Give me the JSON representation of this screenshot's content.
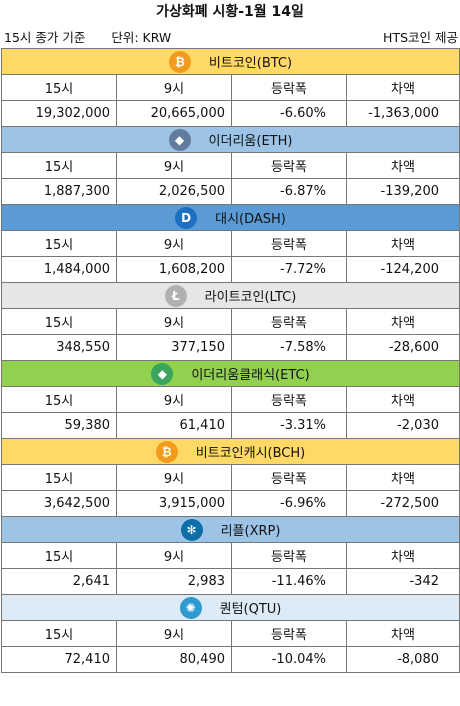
{
  "title": "가상화폐 시황-1월 14일",
  "subtitle": {
    "basis": "15시 종가 기준",
    "unit": "단위: KRW",
    "provider": "HTS코인 제공"
  },
  "headers": [
    "15시",
    "9시",
    "등락폭",
    "차액"
  ],
  "coins": [
    {
      "name": "비트코인(BTC)",
      "color": "#ffd966",
      "icon": "bitcoin-icon",
      "icon_color": "#f39b1c",
      "icon_glyph": "₿",
      "values": [
        "19,302,000",
        "20,665,000",
        "-6.60%",
        "-1,363,000"
      ]
    },
    {
      "name": "이더리움(ETH)",
      "color": "#9dc3e6",
      "icon": "ethereum-icon",
      "icon_color": "#607d9e",
      "icon_glyph": "◆",
      "values": [
        "1,887,300",
        "2,026,500",
        "-6.87%",
        "-139,200"
      ]
    },
    {
      "name": "대시(DASH)",
      "color": "#5b9bd5",
      "icon": "dash-icon",
      "icon_color": "#1d6fc1",
      "icon_glyph": "D",
      "values": [
        "1,484,000",
        "1,608,200",
        "-7.72%",
        "-124,200"
      ]
    },
    {
      "name": "라이트코인(LTC)",
      "color": "#e7e6e6",
      "icon": "litecoin-icon",
      "icon_color": "#b0b0b0",
      "icon_glyph": "Ł",
      "values": [
        "348,550",
        "377,150",
        "-7.58%",
        "-28,600"
      ]
    },
    {
      "name": "이더리움클래식(ETC)",
      "color": "#92d050",
      "icon": "ethereum-classic-icon",
      "icon_color": "#3aa55d",
      "icon_glyph": "◆",
      "values": [
        "59,380",
        "61,410",
        "-3.31%",
        "-2,030"
      ]
    },
    {
      "name": "비트코인캐시(BCH)",
      "color": "#ffd966",
      "icon": "bitcoin-cash-icon",
      "icon_color": "#f39b1c",
      "icon_glyph": "₿",
      "values": [
        "3,642,500",
        "3,915,000",
        "-6.96%",
        "-272,500"
      ]
    },
    {
      "name": "리플(XRP)",
      "color": "#9dc3e6",
      "icon": "ripple-icon",
      "icon_color": "#0d6ea8",
      "icon_glyph": "✻",
      "values": [
        "2,641",
        "2,983",
        "-11.46%",
        "-342"
      ]
    },
    {
      "name": "퀀텀(QTU)",
      "color": "#ddebf7",
      "icon": "qtum-icon",
      "icon_color": "#2e9ad0",
      "icon_glyph": "✺",
      "values": [
        "72,410",
        "80,490",
        "-10.04%",
        "-8,080"
      ]
    }
  ]
}
